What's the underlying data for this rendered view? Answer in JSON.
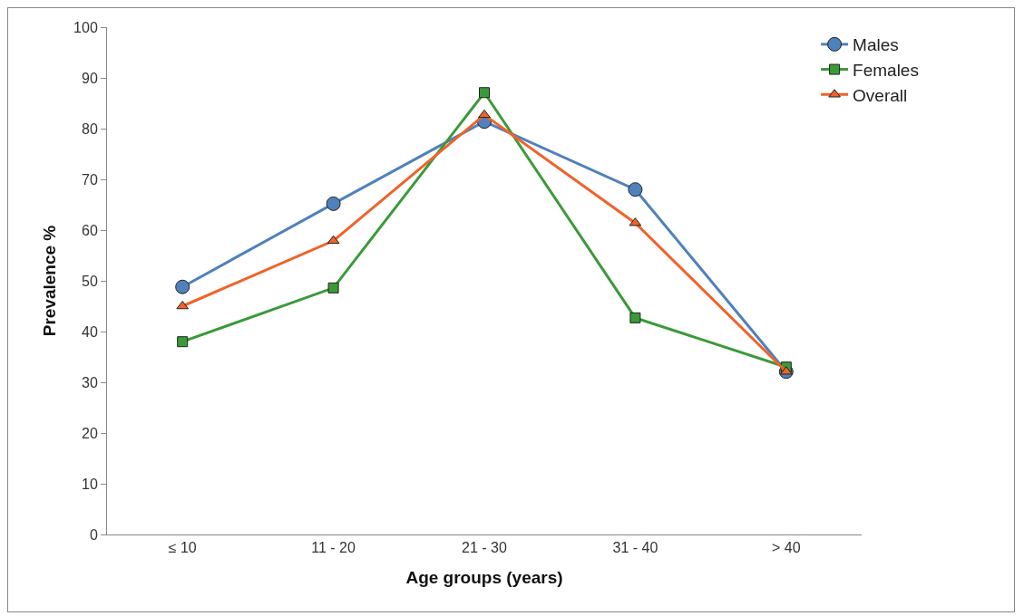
{
  "chart_data": {
    "type": "line",
    "xlabel": "Age groups (years)",
    "ylabel": "Prevalence %",
    "categories": [
      "≤ 10",
      "11 - 20",
      "21 - 30",
      "31 - 40",
      "> 40"
    ],
    "series": [
      {
        "name": "Males",
        "color": "#4f81bd",
        "marker": "circle",
        "values": [
          48.8,
          65.2,
          81.4,
          68.0,
          32.1
        ]
      },
      {
        "name": "Females",
        "color": "#3a9a3a",
        "marker": "square",
        "values": [
          38.0,
          48.6,
          87.1,
          42.7,
          33.0
        ]
      },
      {
        "name": "Overall",
        "color": "#f0622a",
        "marker": "triangle",
        "values": [
          45.0,
          57.9,
          82.7,
          61.4,
          32.1
        ]
      }
    ],
    "ylim": [
      0,
      100
    ],
    "yticks": [
      0,
      10,
      20,
      30,
      40,
      50,
      60,
      70,
      80,
      90,
      100
    ],
    "grid": false,
    "legend": "top right",
    "line_style": "solid"
  }
}
